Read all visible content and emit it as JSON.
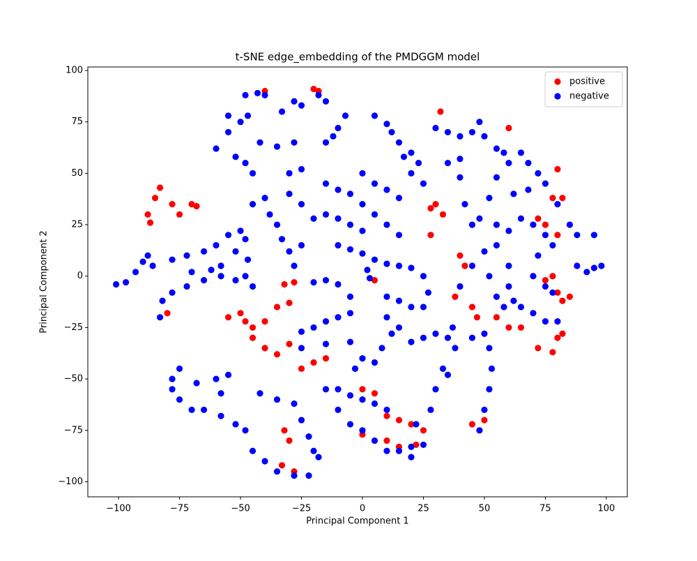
{
  "chart_data": {
    "type": "scatter",
    "title": "t-SNE edge_embedding of the PMDGGM model",
    "xlabel": "Principal Component 1",
    "ylabel": "Principal Component 2",
    "legend": "upper right",
    "xlim": [
      -112.6,
      108.6
    ],
    "ylim": [
      -107.3,
      101.7
    ],
    "xticks": [
      {
        "value": -100,
        "label": "−100"
      },
      {
        "value": -75,
        "label": "−75"
      },
      {
        "value": -50,
        "label": "−50"
      },
      {
        "value": -25,
        "label": "−25"
      },
      0,
      25,
      50,
      75,
      100
    ],
    "yticks": [
      {
        "value": -100,
        "label": "−100"
      },
      {
        "value": -75,
        "label": "−75"
      },
      {
        "value": -50,
        "label": "−50"
      },
      {
        "value": -25,
        "label": "−25"
      },
      0,
      25,
      50,
      75,
      100
    ],
    "series": [
      {
        "name": "positive",
        "color": "#ff0000",
        "x": [
          -88,
          -87,
          -85,
          -83,
          -78,
          -75,
          -70,
          -68,
          -55,
          -50,
          -48,
          -45,
          -40,
          -35,
          -30,
          -45,
          -40,
          -35,
          -30,
          -32,
          -28,
          -25,
          -20,
          -15,
          -80,
          -32,
          -30,
          -28,
          -33,
          0,
          5,
          10,
          15,
          20,
          25,
          10,
          15,
          22,
          0,
          28,
          30,
          28,
          33,
          40,
          42,
          38,
          45,
          47,
          75,
          78,
          80,
          82,
          85,
          55,
          60,
          65,
          72,
          78,
          80,
          82,
          72,
          75,
          80,
          78,
          82,
          45,
          50,
          -20,
          -18,
          -40,
          5,
          32,
          60,
          80
        ],
        "y": [
          30,
          26,
          38,
          43,
          35,
          30,
          35,
          34,
          -20,
          -18,
          -22,
          -25,
          -22,
          -15,
          -13,
          -30,
          -35,
          -38,
          -33,
          -4,
          -3,
          -45,
          -42,
          -40,
          -18,
          -75,
          -80,
          -95,
          -92,
          -55,
          -57,
          -68,
          -70,
          -72,
          -75,
          -80,
          -83,
          -82,
          -77,
          33,
          35,
          20,
          30,
          10,
          5,
          -10,
          -15,
          -20,
          -2,
          0,
          -8,
          -12,
          -10,
          -20,
          -25,
          -25,
          -35,
          -37,
          -30,
          -28,
          28,
          25,
          20,
          38,
          38,
          -72,
          -70,
          91,
          90,
          90,
          -2,
          80,
          72,
          52
        ]
      },
      {
        "name": "negative",
        "color": "#0000ff",
        "x": [
          -101,
          -97,
          -93,
          -90,
          -88,
          -86,
          -83,
          -82,
          -78,
          -72,
          -65,
          -58,
          -52,
          -48,
          -45,
          -78,
          -72,
          -65,
          -60,
          -58,
          -62,
          -70,
          -55,
          -50,
          -48,
          -52,
          -47,
          -60,
          -55,
          -50,
          -55,
          -47,
          -52,
          -48,
          -45,
          -48,
          -43,
          -40,
          -42,
          -35,
          -28,
          -33,
          -28,
          -25,
          -18,
          -15,
          -15,
          -10,
          -7,
          -12,
          -30,
          -25,
          -30,
          -25,
          -20,
          -45,
          -40,
          -38,
          -35,
          -33,
          -30,
          -25,
          -28,
          -15,
          -10,
          -5,
          0,
          5,
          10,
          15,
          -15,
          -10,
          -5,
          0,
          0,
          5,
          10,
          15,
          -10,
          -5,
          0,
          5,
          10,
          -20,
          -15,
          -10,
          -5,
          15,
          20,
          25,
          27,
          25,
          20,
          15,
          10,
          2,
          3,
          -25,
          -20,
          -15,
          -10,
          -5,
          -25,
          -15,
          -5,
          0,
          5,
          8,
          -3,
          10,
          12,
          15,
          20,
          25,
          30,
          35,
          38,
          33,
          30,
          28,
          22,
          37,
          35,
          45,
          50,
          52,
          53,
          52,
          50,
          48,
          -75,
          -78,
          -78,
          -75,
          -70,
          -65,
          -68,
          -60,
          -58,
          -55,
          -58,
          -52,
          -48,
          -42,
          -35,
          -28,
          -25,
          -22,
          -20,
          -18,
          -45,
          -40,
          -35,
          -28,
          -22,
          -15,
          -10,
          -5,
          0,
          5,
          10,
          -10,
          -5,
          0,
          5,
          10,
          15,
          20,
          25,
          20,
          5,
          10,
          12,
          15,
          17,
          20,
          20,
          23,
          25,
          30,
          35,
          40,
          45,
          50,
          48,
          35,
          40,
          40,
          42,
          55,
          58,
          60,
          55,
          52,
          48,
          45,
          65,
          68,
          72,
          75,
          68,
          62,
          55,
          60,
          65,
          70,
          75,
          78,
          80,
          85,
          88,
          95,
          88,
          92,
          95,
          98,
          40,
          45,
          50,
          52,
          55,
          58,
          60,
          62,
          65,
          70,
          75,
          80,
          70,
          72,
          75,
          78,
          55,
          60
        ],
        "y": [
          -4,
          -3,
          2,
          7,
          10,
          5,
          -20,
          -12,
          -8,
          -5,
          -2,
          0,
          -2,
          0,
          -5,
          8,
          10,
          12,
          15,
          5,
          3,
          2,
          20,
          22,
          18,
          12,
          8,
          62,
          70,
          75,
          78,
          78,
          58,
          55,
          50,
          88,
          89,
          88,
          65,
          63,
          65,
          80,
          85,
          83,
          88,
          85,
          65,
          72,
          78,
          68,
          50,
          52,
          40,
          35,
          28,
          35,
          38,
          30,
          25,
          18,
          12,
          15,
          5,
          45,
          42,
          40,
          35,
          30,
          25,
          20,
          30,
          28,
          25,
          22,
          50,
          45,
          42,
          38,
          15,
          13,
          11,
          8,
          6,
          -3,
          -2,
          -4,
          -10,
          5,
          4,
          0,
          -8,
          -15,
          -15,
          -12,
          -10,
          3,
          -1,
          -27,
          -25,
          -22,
          -20,
          -18,
          -35,
          -33,
          -32,
          -40,
          -42,
          -35,
          -45,
          -20,
          -28,
          -25,
          -32,
          -30,
          -28,
          -30,
          -35,
          -45,
          -55,
          -65,
          -72,
          -25,
          -48,
          -30,
          -28,
          -35,
          -45,
          -55,
          -65,
          -75,
          -45,
          -50,
          -55,
          -60,
          -65,
          -65,
          -52,
          -50,
          -57,
          -48,
          -68,
          -72,
          -75,
          -57,
          -60,
          -62,
          -70,
          -78,
          -85,
          -88,
          -85,
          -90,
          -95,
          -97,
          -97,
          -55,
          -55,
          -58,
          -60,
          -62,
          -65,
          -65,
          -72,
          -75,
          -80,
          -85,
          -85,
          -83,
          -82,
          -88,
          78,
          74,
          70,
          65,
          58,
          50,
          60,
          55,
          45,
          72,
          70,
          68,
          70,
          68,
          75,
          55,
          57,
          48,
          35,
          62,
          60,
          55,
          48,
          38,
          28,
          25,
          60,
          55,
          50,
          45,
          42,
          40,
          25,
          22,
          28,
          25,
          20,
          15,
          35,
          25,
          20,
          20,
          5,
          2,
          4,
          5,
          -5,
          5,
          12,
          0,
          -10,
          -15,
          -5,
          -12,
          -15,
          -18,
          -22,
          -22,
          0,
          10,
          -5,
          -8,
          15,
          5
        ]
      }
    ]
  }
}
